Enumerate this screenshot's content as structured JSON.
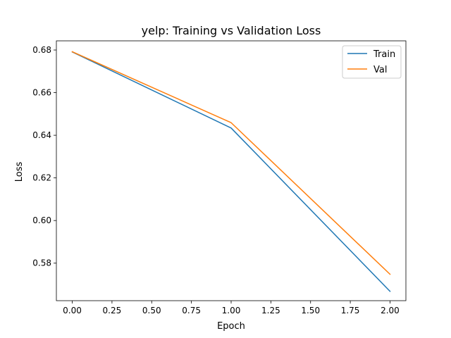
{
  "chart_data": {
    "type": "line",
    "title": "yelp: Training vs Validation Loss",
    "xlabel": "Epoch",
    "ylabel": "Loss",
    "x": [
      0,
      1,
      2
    ],
    "series": [
      {
        "name": "Train",
        "color": "#1f77b4",
        "values": [
          0.6791,
          0.6434,
          0.5668
        ]
      },
      {
        "name": "Val",
        "color": "#ff7f0e",
        "values": [
          0.6792,
          0.6459,
          0.5748
        ]
      }
    ],
    "xlim": [
      -0.1,
      2.1
    ],
    "ylim": [
      0.5624,
      0.6843
    ],
    "xticks": [
      0.0,
      0.25,
      0.5,
      0.75,
      1.0,
      1.25,
      1.5,
      1.75,
      2.0
    ],
    "xtick_labels": [
      "0.00",
      "0.25",
      "0.50",
      "0.75",
      "1.00",
      "1.25",
      "1.50",
      "1.75",
      "2.00"
    ],
    "yticks": [
      0.58,
      0.6,
      0.62,
      0.64,
      0.66,
      0.68
    ],
    "ytick_labels": [
      "0.58",
      "0.60",
      "0.62",
      "0.64",
      "0.66",
      "0.68"
    ],
    "grid": false,
    "legend_position": "upper right"
  }
}
